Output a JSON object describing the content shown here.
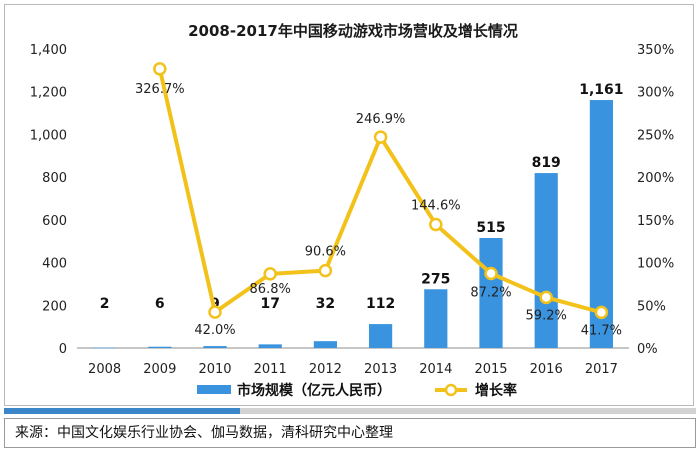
{
  "chart_data": {
    "type": "bar+line",
    "title": "2008-2017年中国移动游戏市场营收及增长情况",
    "categories": [
      "2008",
      "2009",
      "2010",
      "2011",
      "2012",
      "2013",
      "2014",
      "2015",
      "2016",
      "2017"
    ],
    "series": [
      {
        "name": "市场规模（亿元人民币）",
        "type": "bar",
        "axis": "left",
        "values": [
          2,
          6,
          9,
          17,
          32,
          112,
          275,
          515,
          819,
          1161
        ],
        "labels": [
          "2",
          "6",
          "9",
          "17",
          "32",
          "112",
          "275",
          "515",
          "819",
          "1,161"
        ],
        "color": "#3a93de"
      },
      {
        "name": "增长率",
        "type": "line",
        "axis": "right",
        "values": [
          326.7,
          42.0,
          86.8,
          90.6,
          246.9,
          144.6,
          87.2,
          59.2,
          41.7
        ],
        "x": [
          "2009",
          "2010",
          "2011",
          "2012",
          "2013",
          "2014",
          "2015",
          "2016",
          "2017"
        ],
        "labels": [
          "326.7%",
          "42.0%",
          "86.8%",
          "90.6%",
          "246.9%",
          "144.6%",
          "87.2%",
          "59.2%",
          "41.7%"
        ],
        "color": "#f2c21b"
      }
    ],
    "ylim_left": [
      0,
      1400
    ],
    "yticks_left": [
      "0",
      "200",
      "400",
      "600",
      "800",
      "1,000",
      "1,200",
      "1,400"
    ],
    "ylim_right": [
      0,
      350
    ],
    "yticks_right": [
      "0%",
      "50%",
      "100%",
      "150%",
      "200%",
      "250%",
      "300%",
      "350%"
    ],
    "legend_position": "bottom",
    "grid": false
  },
  "source_text": "来源：中国文化娱乐行业协会、伽马数据，清科研究中心整理"
}
